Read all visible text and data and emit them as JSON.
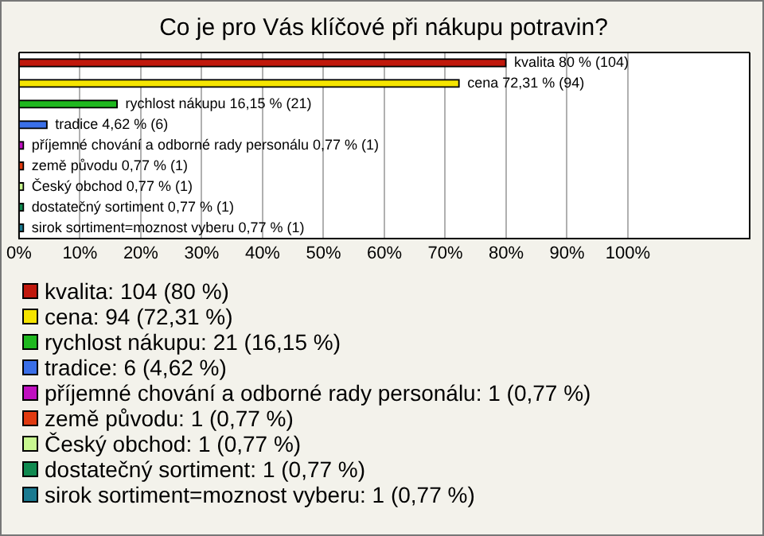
{
  "chart_data": {
    "type": "bar",
    "orientation": "horizontal",
    "title": "Co je pro Vás klíčové při nákupu potravin?",
    "categories": [
      null,
      null,
      null,
      null,
      null,
      null,
      null,
      null,
      null
    ],
    "series": [
      {
        "name": "kvalita: 104 (80 %)",
        "color": "#c0180c",
        "values": [
          80,
          null,
          null,
          null,
          null,
          null,
          null,
          null,
          null
        ],
        "value_labels": [
          "kvalita 80 % (104)",
          null,
          null,
          null,
          null,
          null,
          null,
          null,
          null
        ]
      },
      {
        "name": "cena: 94 (72,31 %)",
        "color": "#f5e400",
        "values": [
          null,
          72.31,
          null,
          null,
          null,
          null,
          null,
          null,
          null
        ],
        "value_labels": [
          null,
          "cena 72,31 % (94)",
          null,
          null,
          null,
          null,
          null,
          null,
          null
        ]
      },
      {
        "name": "rychlost nákupu: 21 (16,15 %)",
        "color": "#1fb81f",
        "values": [
          null,
          null,
          16.15,
          null,
          null,
          null,
          null,
          null,
          null
        ],
        "value_labels": [
          null,
          null,
          "rychlost nákupu 16,15 % (21)",
          null,
          null,
          null,
          null,
          null,
          null
        ]
      },
      {
        "name": "tradice: 6 (4,62 %)",
        "color": "#3a6fe8",
        "values": [
          null,
          null,
          null,
          4.62,
          null,
          null,
          null,
          null,
          null
        ],
        "value_labels": [
          null,
          null,
          null,
          "tradice 4,62 % (6)",
          null,
          null,
          null,
          null,
          null
        ]
      },
      {
        "name": "příjemné chování a odborné rady personálu: 1 (0,77 %)",
        "color": "#c010c0",
        "values": [
          null,
          null,
          null,
          null,
          0.77,
          null,
          null,
          null,
          null
        ],
        "value_labels": [
          null,
          null,
          null,
          null,
          "příjemné chování a odborné rady personálu 0,77 % (1)",
          null,
          null,
          null,
          null
        ]
      },
      {
        "name": "země původu: 1 (0,77 %)",
        "color": "#e03a10",
        "values": [
          null,
          null,
          null,
          null,
          null,
          0.77,
          null,
          null,
          null
        ],
        "value_labels": [
          null,
          null,
          null,
          null,
          null,
          "země původu 0,77 % (1)",
          null,
          null,
          null
        ]
      },
      {
        "name": "Český obchod: 1 (0,77 %)",
        "color": "#c8f890",
        "values": [
          null,
          null,
          null,
          null,
          null,
          null,
          0.77,
          null,
          null
        ],
        "value_labels": [
          null,
          null,
          null,
          null,
          null,
          null,
          "Český obchod 0,77 % (1)",
          null,
          null
        ]
      },
      {
        "name": "dostatečný sortiment: 1 (0,77 %)",
        "color": "#108a50",
        "values": [
          null,
          null,
          null,
          null,
          null,
          null,
          null,
          0.77,
          null
        ],
        "value_labels": [
          null,
          null,
          null,
          null,
          null,
          null,
          null,
          "dostatečný sortiment 0,77 % (1)",
          null
        ]
      },
      {
        "name": "sirok sortiment=moznost vyberu: 1 (0,77 %)",
        "color": "#1a7a90",
        "values": [
          null,
          null,
          null,
          null,
          null,
          null,
          null,
          null,
          0.77
        ],
        "value_labels": [
          null,
          null,
          null,
          null,
          null,
          null,
          null,
          null,
          "sirok sortiment=moznost vyberu 0,77 % (1)"
        ]
      }
    ],
    "xlim": [
      0,
      120
    ],
    "xticks": [
      {
        "value": 0,
        "label": "0%"
      },
      {
        "value": 10,
        "label": "10%"
      },
      {
        "value": 20,
        "label": "20%"
      },
      {
        "value": 30,
        "label": "30%"
      },
      {
        "value": 40,
        "label": "40%"
      },
      {
        "value": 50,
        "label": "50%"
      },
      {
        "value": 60,
        "label": "60%"
      },
      {
        "value": 70,
        "label": "70%"
      },
      {
        "value": 80,
        "label": "80%"
      },
      {
        "value": 90,
        "label": "90%"
      },
      {
        "value": 100,
        "label": "100%"
      }
    ],
    "grid": "x",
    "legend": "bottom",
    "tick_labels": "x"
  }
}
